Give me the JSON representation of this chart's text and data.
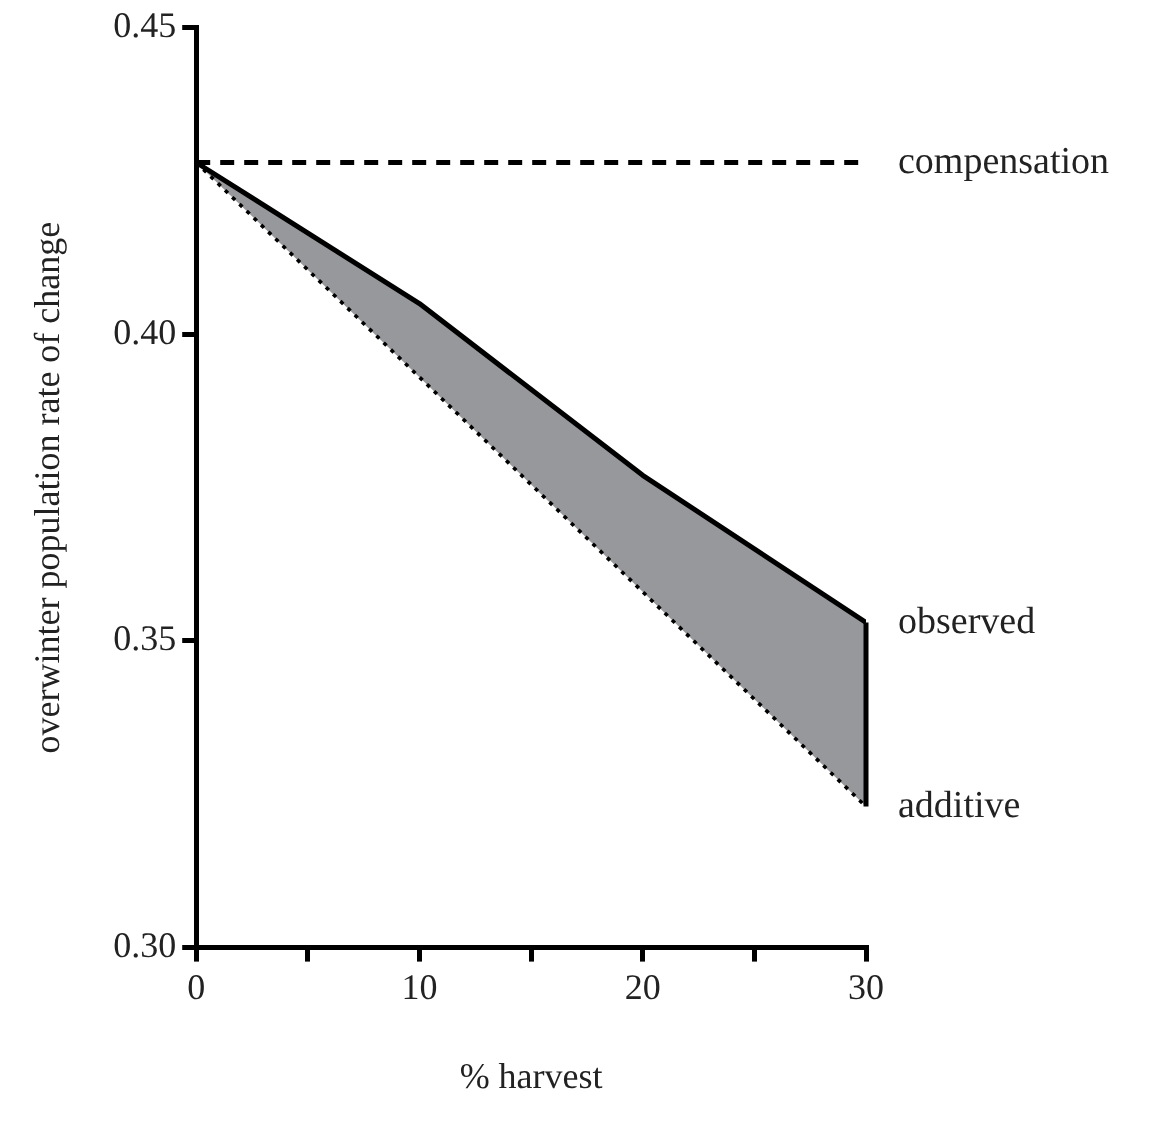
{
  "chart_data": {
    "type": "line",
    "xlabel": "% harvest",
    "ylabel": "overwinter population rate of change",
    "x": [
      0,
      10,
      20,
      30
    ],
    "series": [
      {
        "name": "compensation",
        "color": "#000000",
        "values": [
          0.428,
          0.428,
          0.428,
          0.428
        ],
        "line_style": "dashed"
      },
      {
        "name": "observed",
        "color": "#000000",
        "values": [
          0.428,
          0.405,
          0.377,
          0.353
        ],
        "line_style": "solid"
      },
      {
        "name": "additive",
        "color": "#000000",
        "values": [
          0.428,
          0.393,
          0.358,
          0.323
        ],
        "line_style": "dotted"
      }
    ],
    "xlim": [
      0,
      30
    ],
    "xticks": [
      0,
      {
        "value": 5,
        "label": null
      },
      10,
      {
        "value": 15,
        "label": null
      },
      20,
      {
        "value": 25,
        "label": null
      },
      30
    ],
    "ylim": [
      0.3,
      0.45
    ],
    "yticks": [
      {
        "value": 0.3,
        "label": "0.30"
      },
      0.35,
      {
        "value": 0.4,
        "label": "0.40"
      },
      0.45
    ],
    "grid": false,
    "legend": false,
    "marker": "none"
  }
}
